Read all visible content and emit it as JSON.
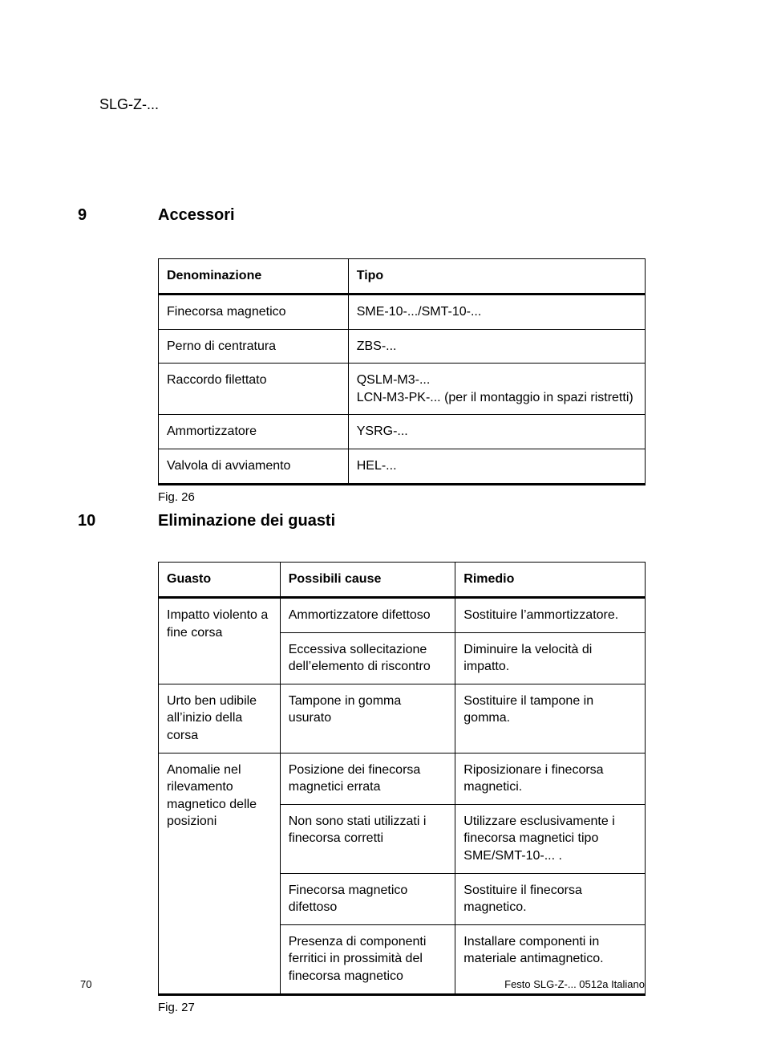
{
  "header": {
    "product": "SLG-Z-..."
  },
  "section9": {
    "num": "9",
    "title": "Accessori"
  },
  "table9": {
    "columns": [
      "Denominazione",
      "Tipo"
    ],
    "colwidths": [
      "39%",
      "61%"
    ],
    "rows": [
      [
        "Finecorsa magnetico",
        "SME-10-.../SMT-10-..."
      ],
      [
        "Perno di centratura",
        "ZBS-..."
      ],
      [
        "Raccordo filettato",
        "QSLM-M3-...\nLCN-M3-PK-... (per il montaggio in spazi ristretti)"
      ],
      [
        "Ammortizzatore",
        "YSRG-..."
      ],
      [
        "Valvola di avviamento",
        "HEL-..."
      ]
    ],
    "caption": "Fig. 26"
  },
  "section10": {
    "num": "10",
    "title": "Eliminazione dei guasti"
  },
  "table10": {
    "columns": [
      "Guasto",
      "Possibili cause",
      "Rimedio"
    ],
    "colwidths": [
      "25%",
      "36%",
      "39%"
    ],
    "groups": [
      {
        "fault": "Impatto violento a fine corsa",
        "rows": [
          {
            "cause": "Ammortizzatore difettoso",
            "remedy": "Sostituire l’ammortizzatore."
          },
          {
            "cause": "Eccessiva sollecitazione dell’elemento di riscontro",
            "remedy": "Diminuire la velocità di impatto."
          }
        ]
      },
      {
        "fault": "Urto ben udibile all’inizio della corsa",
        "rows": [
          {
            "cause": "Tampone in gomma usurato",
            "remedy": "Sostituire il tampone in gomma."
          }
        ]
      },
      {
        "fault": "Anomalie nel rilevamento magnetico delle posizioni",
        "rows": [
          {
            "cause": "Posizione dei finecorsa magnetici errata",
            "remedy": "Riposizionare i finecorsa magnetici."
          },
          {
            "cause": "Non sono stati utilizzati i finecorsa corretti",
            "remedy": "Utilizzare esclusivamente i finecorsa magnetici tipo SME/SMT-10-... ."
          },
          {
            "cause": "Finecorsa magnetico difettoso",
            "remedy": "Sostituire il finecorsa magnetico."
          },
          {
            "cause": "Presenza di componenti ferritici in prossimità del finecorsa magnetico",
            "remedy": "Installare componenti in materiale antimagnetico."
          }
        ]
      }
    ],
    "caption": "Fig. 27"
  },
  "footer": {
    "page": "70",
    "meta": "Festo SLG-Z-... 0512a  Italiano"
  }
}
